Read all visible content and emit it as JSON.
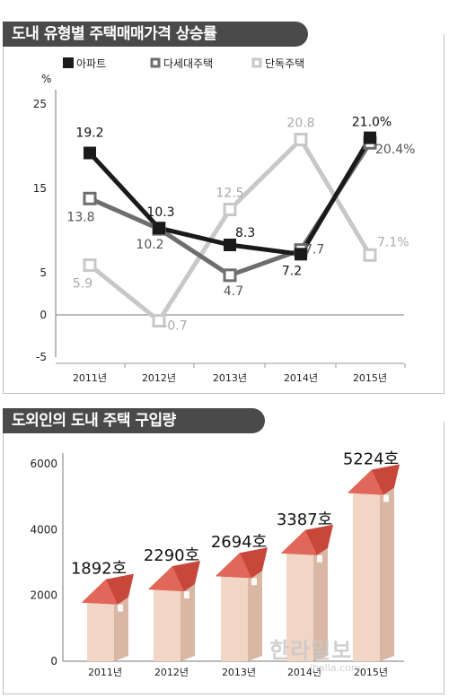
{
  "chart_top": {
    "title": "도내 유형별 주택매매가격 상승률",
    "type": "line",
    "ylabel": "%",
    "ylim": [
      -5,
      25
    ],
    "yticks": [
      25,
      15,
      5,
      0,
      -5
    ],
    "categories": [
      "2011년",
      "2012년",
      "2013년",
      "2014년",
      "2015년"
    ],
    "series": [
      {
        "name": "아파트",
        "color": "#1a1a1a",
        "values": [
          19.2,
          10.3,
          8.3,
          7.2,
          21.0
        ],
        "labels": [
          "19.2",
          "10.3",
          "8.3",
          "7.2",
          "21.0%"
        ]
      },
      {
        "name": "다세대주택",
        "color": "#6e6e6e",
        "values": [
          13.8,
          10.2,
          4.7,
          7.7,
          20.4
        ],
        "labels": [
          "13.8",
          "10.2",
          "4.7",
          "7.7",
          "20.4%"
        ]
      },
      {
        "name": "단독주택",
        "color": "#c8c8c8",
        "values": [
          5.9,
          -0.7,
          12.5,
          20.8,
          7.1
        ],
        "labels": [
          "5.9",
          "-0.7",
          "12.5",
          "20.8",
          "7.1%"
        ]
      }
    ]
  },
  "chart_bottom": {
    "title": "도외인의 도내 주택 구입량",
    "type": "bar",
    "ylim": [
      0,
      6000
    ],
    "yticks": [
      6000,
      4000,
      2000,
      0
    ],
    "categories": [
      "2011년",
      "2012년",
      "2013년",
      "2014년",
      "2015년"
    ],
    "values": [
      1892,
      2290,
      2694,
      3387,
      5224
    ],
    "labels": [
      "1892호",
      "2290호",
      "2694호",
      "3387호",
      "5224호"
    ]
  },
  "watermark": {
    "text": "한라일보",
    "sub": "ihalla.com"
  }
}
